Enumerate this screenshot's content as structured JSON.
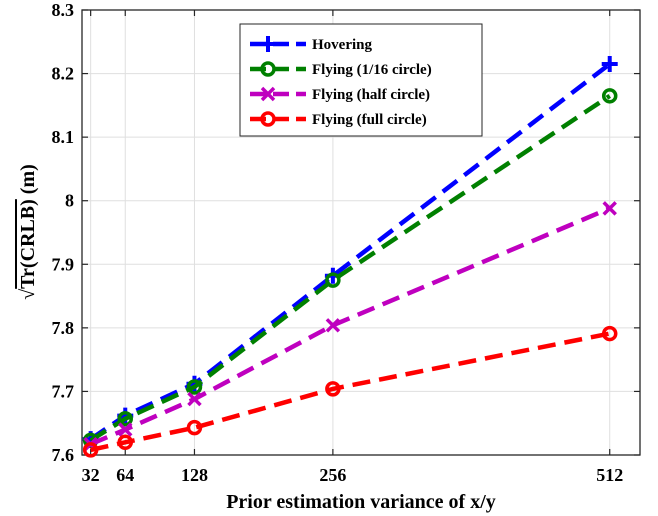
{
  "chart_data": {
    "type": "line",
    "xlabel": "Prior estimation variance of x/y",
    "ylabel": {
      "prefix": "√",
      "main": "Tr(CRLB)",
      "suffix": " (m)"
    },
    "x": [
      32,
      64,
      128,
      256,
      512
    ],
    "x_ticks": [
      "32",
      "64",
      "128",
      "256",
      "512"
    ],
    "xlim": [
      24,
      540
    ],
    "ylim": [
      7.6,
      8.3
    ],
    "y_ticks": [
      "7.6",
      "7.7",
      "7.8",
      "7.9",
      "8",
      "8.1",
      "8.2",
      "8.3"
    ],
    "grid": true,
    "legend_position": "top-right",
    "series": [
      {
        "name": "Hovering",
        "color": "#0000ff",
        "marker": "plus",
        "values": [
          7.625,
          7.662,
          7.712,
          7.882,
          8.215
        ]
      },
      {
        "name": "Flying (1/16 circle)",
        "color": "#008000",
        "marker": "circle",
        "values": [
          7.623,
          7.657,
          7.707,
          7.875,
          8.165
        ]
      },
      {
        "name": "Flying (half circle)",
        "color": "#bf00bf",
        "marker": "x",
        "values": [
          7.617,
          7.64,
          7.688,
          7.804,
          7.988
        ]
      },
      {
        "name": "Flying (full circle)",
        "color": "#ff0000",
        "marker": "circle",
        "values": [
          7.608,
          7.62,
          7.643,
          7.704,
          7.791
        ]
      }
    ]
  }
}
